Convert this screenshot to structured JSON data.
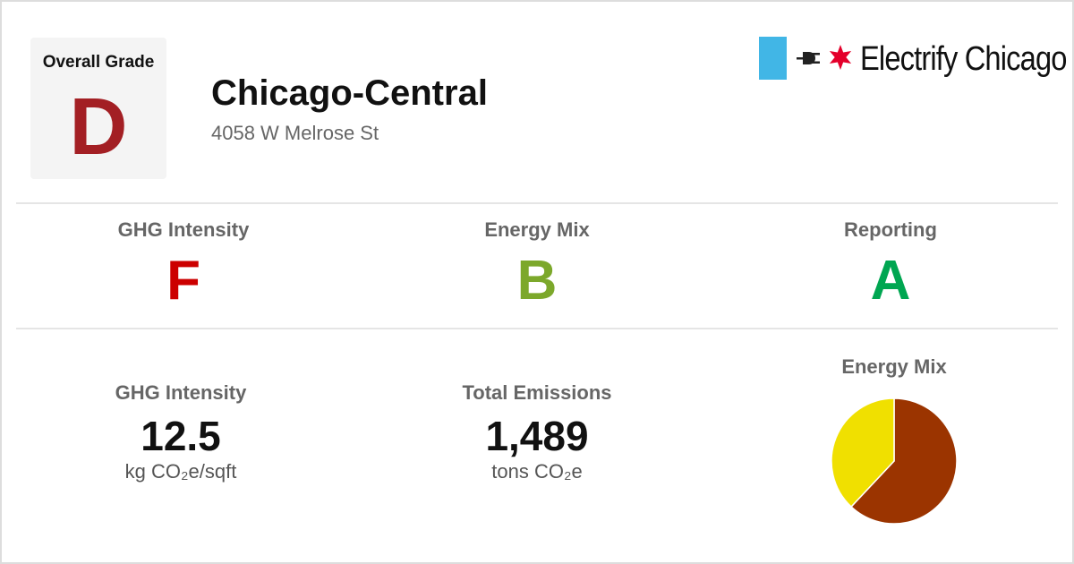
{
  "header": {
    "overall_grade_label": "Overall Grade",
    "overall_grade": "D",
    "building_name": "Chicago-Central",
    "address": "4058 W Melrose St",
    "brand": {
      "name": "Electrify Chicago",
      "icons": [
        "plug-icon",
        "chicago-star-icon"
      ],
      "colors": {
        "bar": "#41b6e6",
        "star": "#e4002b"
      }
    }
  },
  "grades": [
    {
      "label": "GHG Intensity",
      "grade": "F",
      "color": "#cc0000"
    },
    {
      "label": "Energy Mix",
      "grade": "B",
      "color": "#7ca82b"
    },
    {
      "label": "Reporting",
      "grade": "A",
      "color": "#00a651"
    }
  ],
  "metrics": [
    {
      "label": "GHG Intensity",
      "value": "12.5",
      "unit": "kg CO₂e/sqft"
    },
    {
      "label": "Total Emissions",
      "value": "1,489",
      "unit": "tons CO₂e"
    }
  ],
  "energy_mix": {
    "title": "Energy Mix"
  },
  "chart_data": {
    "type": "pie",
    "title": "Energy Mix",
    "slices": [
      {
        "value": 62,
        "color": "#9b3400"
      },
      {
        "value": 38,
        "color": "#f0e000"
      }
    ]
  }
}
